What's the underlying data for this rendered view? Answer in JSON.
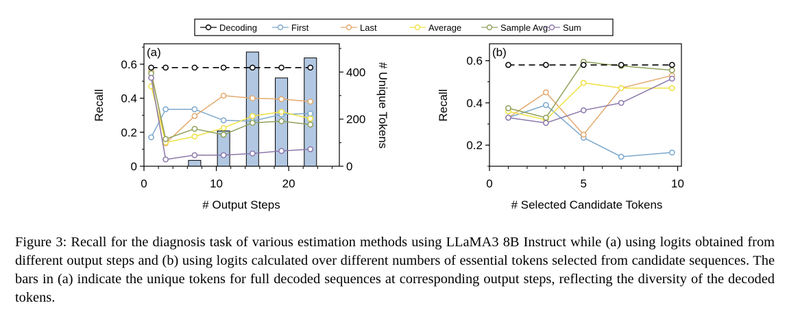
{
  "figure": {
    "caption": "Figure 3: Recall for the diagnosis task of various estimation methods using LLaMA3 8B Instruct while (a) using logits obtained from different output steps and (b) using logits calculated over different numbers of essential tokens selected from candidate sequences. The bars in (a) indicate the unique tokens for full decoded sequences at corresponding output steps, reflecting the diversity of the decoded tokens."
  },
  "legend": {
    "entries": [
      {
        "name": "Decoding",
        "color": "#000000",
        "dashed": true
      },
      {
        "name": "First",
        "color": "#7ba7cc"
      },
      {
        "name": "Last",
        "color": "#e3a86c"
      },
      {
        "name": "Average",
        "color": "#f0e040"
      },
      {
        "name": "Sample Avg.",
        "color": "#8ea05a"
      },
      {
        "name": "Sum",
        "color": "#8b77aa"
      }
    ]
  },
  "chart_data": [
    {
      "panel": "(a)",
      "type": "line",
      "xlabel": "# Output Steps",
      "ylabel": "Recall",
      "y2label": "# Unique Tokens",
      "xlim": [
        0,
        27
      ],
      "ylim": [
        0,
        0.72
      ],
      "y2lim": [
        0,
        520
      ],
      "xticks": [
        0,
        10,
        20
      ],
      "yticks": [
        0,
        0.2,
        0.4,
        0.6
      ],
      "ytick_labels": [
        "0",
        "0.2",
        "0.4",
        "0.6"
      ],
      "y2ticks": [
        0,
        200,
        400
      ],
      "bars": {
        "name": "# Unique Tokens",
        "color": "#b2c8e2",
        "x": [
          7,
          11,
          15,
          19,
          23
        ],
        "values": [
          25,
          150,
          485,
          375,
          460
        ]
      },
      "x": [
        1,
        3,
        7,
        11,
        15,
        19,
        23
      ],
      "series": [
        {
          "name": "Decoding",
          "color": "#000000",
          "dashed": true,
          "values": [
            0.58,
            0.58,
            0.58,
            0.58,
            0.58,
            0.58,
            0.58
          ]
        },
        {
          "name": "First",
          "color": "#7ba7cc",
          "values": [
            0.17,
            0.335,
            0.335,
            0.27,
            0.265,
            0.305,
            0.31
          ]
        },
        {
          "name": "Last",
          "color": "#e3a86c",
          "values": [
            0.56,
            0.135,
            0.295,
            0.415,
            0.4,
            0.395,
            0.38
          ]
        },
        {
          "name": "Average",
          "color": "#f0e040",
          "values": [
            0.47,
            0.14,
            0.175,
            0.225,
            0.295,
            0.32,
            0.28
          ]
        },
        {
          "name": "Sample Avg.",
          "color": "#8ea05a",
          "values": [
            0.545,
            0.16,
            0.22,
            0.185,
            0.255,
            0.265,
            0.245
          ]
        },
        {
          "name": "Sum",
          "color": "#8b77aa",
          "values": [
            0.52,
            0.04,
            0.065,
            0.065,
            0.075,
            0.09,
            0.1
          ]
        }
      ]
    },
    {
      "panel": "(b)",
      "type": "line",
      "xlabel": "# Selected Candidate Tokens",
      "ylabel": "Recall",
      "xlim": [
        0,
        10.2
      ],
      "ylim": [
        0.1,
        0.68
      ],
      "xticks": [
        0,
        5,
        10
      ],
      "yticks": [
        0.2,
        0.4,
        0.6
      ],
      "ytick_labels": [
        "0.2",
        "0.4",
        "0.6"
      ],
      "x": [
        1,
        3,
        5,
        7,
        9.7
      ],
      "series": [
        {
          "name": "Decoding",
          "color": "#000000",
          "dashed": true,
          "values": [
            0.58,
            0.58,
            0.58,
            0.58,
            0.58
          ]
        },
        {
          "name": "First",
          "color": "#7ba7cc",
          "values": [
            0.33,
            0.39,
            0.235,
            0.145,
            0.165
          ]
        },
        {
          "name": "Last",
          "color": "#e3a86c",
          "values": [
            0.33,
            0.45,
            0.25,
            0.47,
            0.53
          ]
        },
        {
          "name": "Average",
          "color": "#f0e040",
          "values": [
            0.36,
            0.32,
            0.495,
            0.47,
            0.47
          ]
        },
        {
          "name": "Sample Avg.",
          "color": "#8ea05a",
          "values": [
            0.375,
            0.33,
            0.595,
            0.575,
            0.555
          ]
        },
        {
          "name": "Sum",
          "color": "#8b77aa",
          "values": [
            0.33,
            0.305,
            0.365,
            0.4,
            0.515
          ]
        }
      ]
    }
  ]
}
